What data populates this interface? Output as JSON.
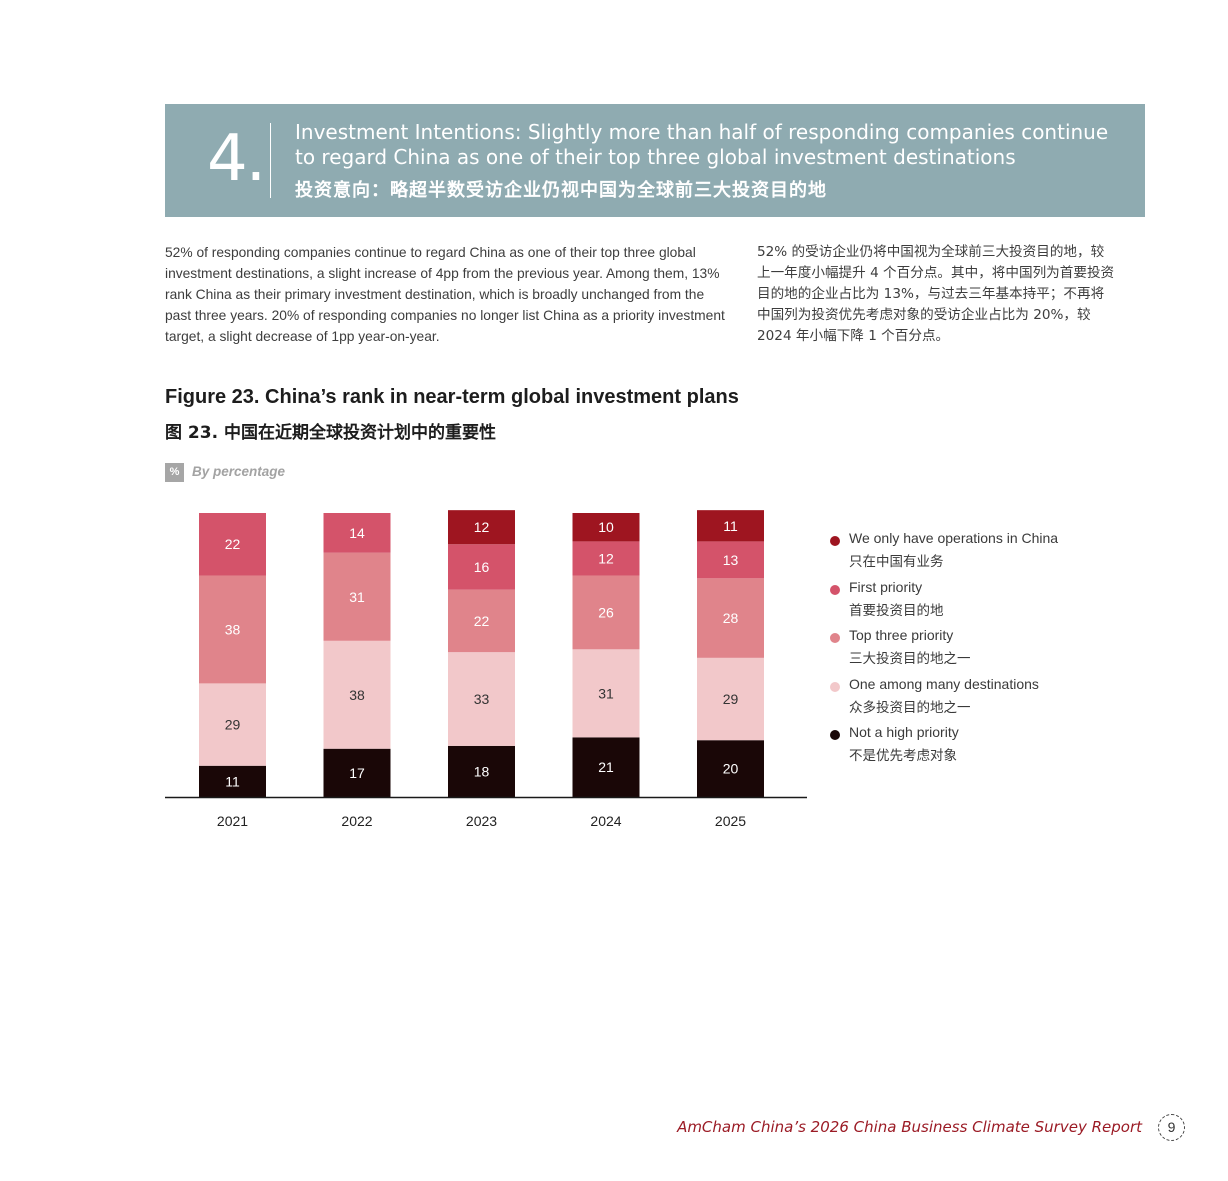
{
  "section": {
    "number": "4.",
    "title_en": "Investment Intentions: Slightly more than half of responding companies continue to regard China as one of their top three global investment destinations",
    "title_cn": "投资意向：略超半数受访企业仍视中国为全球前三大投资目的地"
  },
  "body": {
    "en": "52% of responding companies continue to regard China as one of their top three global investment destinations, a slight increase of 4pp from the previous year. Among them, 13% rank China as their primary investment destination, which is broadly unchanged from the past three years. 20% of responding companies no longer list China as a priority investment target, a slight decrease of 1pp year-on-year.",
    "cn": "52% 的受访企业仍将中国视为全球前三大投资目的地，较上一年度小幅提升 4 个百分点。其中，将中国列为首要投资目的地的企业占比为 13%，与过去三年基本持平；不再将中国列为投资优先考虑对象的受访企业占比为 20%，较 2024 年小幅下降 1 个百分点。"
  },
  "figure": {
    "title_en": "Figure 23. China’s rank in near-term global investment plans",
    "title_cn": "图 23. 中国在近期全球投资计划中的重要性",
    "unit_icon": "%",
    "unit_label": "By percentage"
  },
  "chart_data": {
    "type": "bar",
    "stacked": true,
    "categories": [
      "2021",
      "2022",
      "2023",
      "2024",
      "2025"
    ],
    "series": [
      {
        "name": "Not a high priority",
        "name_cn": "不是优先考虑对象",
        "color": "#1a0707",
        "values": [
          11,
          17,
          18,
          21,
          20
        ]
      },
      {
        "name": "One among many destinations",
        "name_cn": "众多投资目的地之一",
        "color": "#f2c8ca",
        "values": [
          29,
          38,
          33,
          31,
          29
        ]
      },
      {
        "name": "Top three priority",
        "name_cn": "三大投资目的地之一",
        "color": "#e0848b",
        "values": [
          38,
          31,
          22,
          26,
          28
        ]
      },
      {
        "name": "First priority",
        "name_cn": "首要投资目的地",
        "color": "#d4536a",
        "values": [
          22,
          14,
          16,
          12,
          13
        ]
      },
      {
        "name": "We only have operations in China",
        "name_cn": "只在中国有业务",
        "color": "#9e1520",
        "values": [
          0,
          0,
          12,
          10,
          11
        ]
      }
    ],
    "legend": [
      {
        "en": "We only have operations in China",
        "cn": "只在中国有业务",
        "color": "#9e1520"
      },
      {
        "en": "First priority",
        "cn": "首要投资目的地",
        "color": "#d4536a"
      },
      {
        "en": "Top three priority",
        "cn": "三大投资目的地之一",
        "color": "#e0848b"
      },
      {
        "en": "One among many destinations",
        "cn": "众多投资目的地之一",
        "color": "#f2c8ca"
      },
      {
        "en": "Not a high priority",
        "cn": "不是优先考虑对象",
        "color": "#1a0707"
      }
    ],
    "legend_position": "right",
    "grid": false
  },
  "footer": {
    "report": "AmCham China’s 2026 China Business Climate Survey Report",
    "page": "9"
  }
}
